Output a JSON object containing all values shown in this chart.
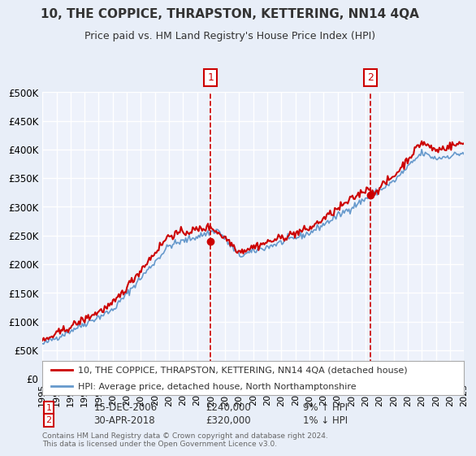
{
  "title": "10, THE COPPICE, THRAPSTON, KETTERING, NN14 4QA",
  "subtitle": "Price paid vs. HM Land Registry's House Price Index (HPI)",
  "bg_color": "#e8eef8",
  "plot_bg_color": "#eef2fb",
  "grid_color": "#ffffff",
  "red_line_color": "#cc0000",
  "blue_line_color": "#6699cc",
  "sale1_x": 2006.96,
  "sale1_y": 240000,
  "sale1_label": "1",
  "sale1_date": "15-DEC-2006",
  "sale1_price": "£240,000",
  "sale1_hpi": "9% ↑ HPI",
  "sale2_x": 2018.33,
  "sale2_y": 320000,
  "sale2_label": "2",
  "sale2_date": "30-APR-2018",
  "sale2_price": "£320,000",
  "sale2_hpi": "1% ↓ HPI",
  "xmin": 1995,
  "xmax": 2025,
  "ymin": 0,
  "ymax": 500000,
  "yticks": [
    0,
    50000,
    100000,
    150000,
    200000,
    250000,
    300000,
    350000,
    400000,
    450000,
    500000
  ],
  "ytick_labels": [
    "£0",
    "£50K",
    "£100K",
    "£150K",
    "£200K",
    "£250K",
    "£300K",
    "£350K",
    "£400K",
    "£450K",
    "£500K"
  ],
  "footer": "Contains HM Land Registry data © Crown copyright and database right 2024.\nThis data is licensed under the Open Government Licence v3.0.",
  "legend_line1": "10, THE COPPICE, THRAPSTON, KETTERING, NN14 4QA (detached house)",
  "legend_line2": "HPI: Average price, detached house, North Northamptonshire"
}
